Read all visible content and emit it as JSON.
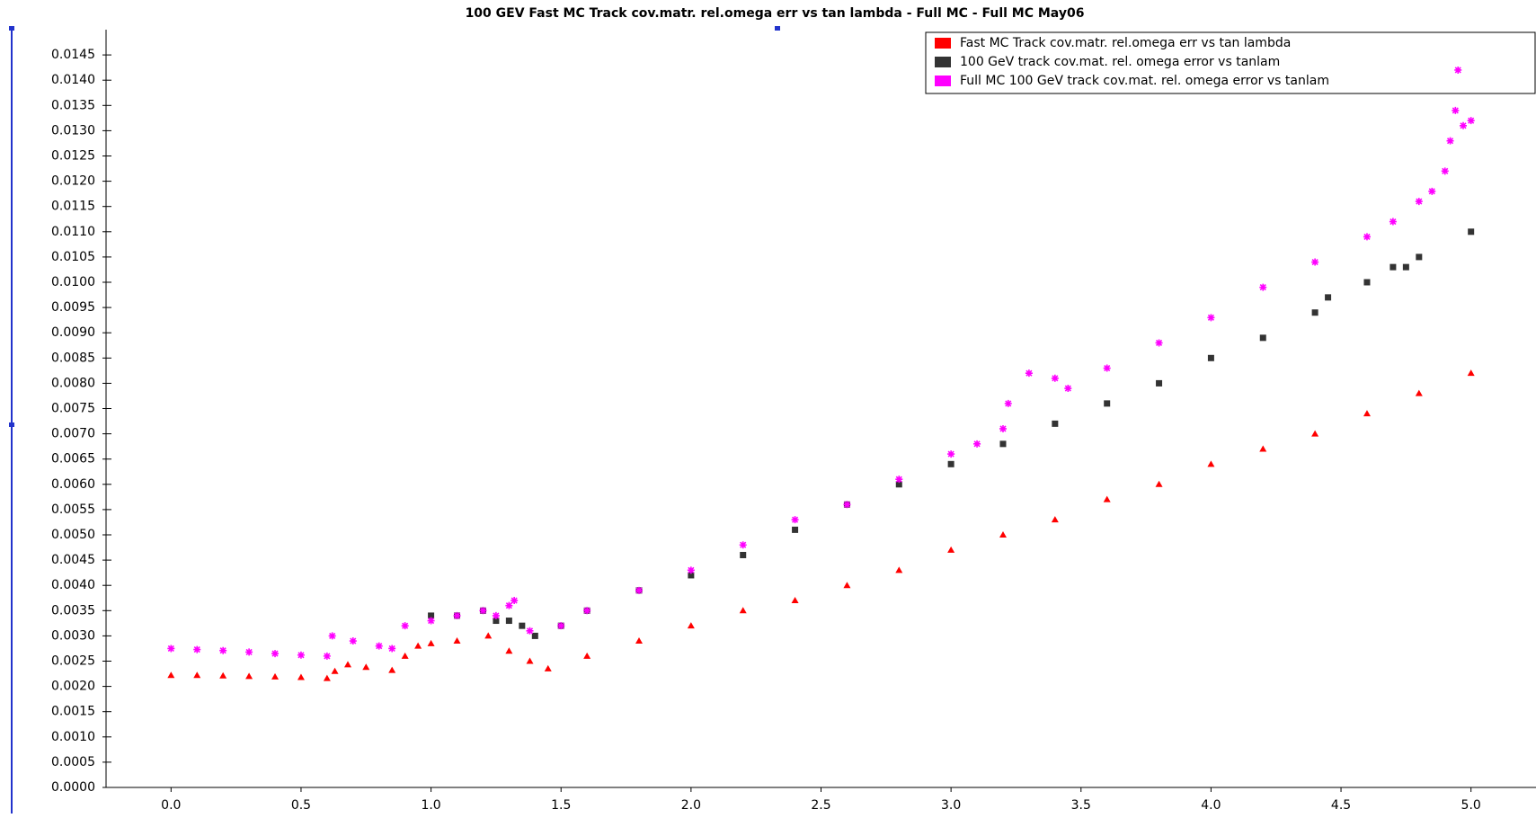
{
  "chart_data": {
    "type": "scatter",
    "title": "100 GEV Fast MC Track cov.matr. rel.omega err vs tan lambda - Full MC - Full MC May06",
    "xlim": [
      -0.25,
      5.25
    ],
    "ylim": [
      0,
      0.015
    ],
    "xticks": [
      {
        "value": 0,
        "label": "0.0"
      },
      {
        "value": 0.5,
        "label": "0.5"
      },
      {
        "value": 1,
        "label": "1.0"
      },
      {
        "value": 1.5,
        "label": "1.5"
      },
      {
        "value": 2,
        "label": "2.0"
      },
      {
        "value": 2.5,
        "label": "2.5"
      },
      {
        "value": 3,
        "label": "3.0"
      },
      {
        "value": 3.5,
        "label": "3.5"
      },
      {
        "value": 4,
        "label": "4.0"
      },
      {
        "value": 4.5,
        "label": "4.5"
      },
      {
        "value": 5,
        "label": "5.0"
      }
    ],
    "yticks": [
      {
        "value": 0,
        "label": "0.0000"
      },
      {
        "value": 0.0005,
        "label": "0.0005"
      },
      {
        "value": 0.001,
        "label": "0.0010"
      },
      {
        "value": 0.0015,
        "label": "0.0015"
      },
      {
        "value": 0.002,
        "label": "0.0020"
      },
      {
        "value": 0.0025,
        "label": "0.0025"
      },
      {
        "value": 0.003,
        "label": "0.0030"
      },
      {
        "value": 0.0035,
        "label": "0.0035"
      },
      {
        "value": 0.004,
        "label": "0.0040"
      },
      {
        "value": 0.0045,
        "label": "0.0045"
      },
      {
        "value": 0.005,
        "label": "0.0050"
      },
      {
        "value": 0.0055,
        "label": "0.0055"
      },
      {
        "value": 0.006,
        "label": "0.0060"
      },
      {
        "value": 0.0065,
        "label": "0.0065"
      },
      {
        "value": 0.007,
        "label": "0.0070"
      },
      {
        "value": 0.0075,
        "label": "0.0075"
      },
      {
        "value": 0.008,
        "label": "0.0080"
      },
      {
        "value": 0.0085,
        "label": "0.0085"
      },
      {
        "value": 0.009,
        "label": "0.0090"
      },
      {
        "value": 0.0095,
        "label": "0.0095"
      },
      {
        "value": 0.01,
        "label": "0.0100"
      },
      {
        "value": 0.0105,
        "label": "0.0105"
      },
      {
        "value": 0.011,
        "label": "0.0110"
      },
      {
        "value": 0.0115,
        "label": "0.0115"
      },
      {
        "value": 0.012,
        "label": "0.0120"
      },
      {
        "value": 0.0125,
        "label": "0.0125"
      },
      {
        "value": 0.013,
        "label": "0.0130"
      },
      {
        "value": 0.0135,
        "label": "0.0135"
      },
      {
        "value": 0.014,
        "label": "0.0140"
      },
      {
        "value": 0.0145,
        "label": "0.0145"
      }
    ],
    "grid": false,
    "legend": "top-right",
    "series": [
      {
        "name": "Fast MC Track cov.matr. rel.omega err vs tan lambda",
        "color": "#ff0000",
        "marker": "triangle",
        "x": [
          0,
          0.1,
          0.2,
          0.3,
          0.4,
          0.5,
          0.6,
          0.63,
          0.68,
          0.75,
          0.85,
          0.9,
          0.95,
          1.0,
          1.1,
          1.22,
          1.3,
          1.38,
          1.45,
          1.6,
          1.8,
          2.0,
          2.2,
          2.4,
          2.6,
          2.8,
          3.0,
          3.2,
          3.4,
          3.6,
          3.8,
          4.0,
          4.2,
          4.4,
          4.6,
          4.8,
          5.0
        ],
        "values": [
          0.00222,
          0.00222,
          0.00221,
          0.0022,
          0.00219,
          0.00218,
          0.00216,
          0.0023,
          0.00243,
          0.00238,
          0.00232,
          0.0026,
          0.0028,
          0.00285,
          0.0029,
          0.003,
          0.0027,
          0.0025,
          0.00235,
          0.0026,
          0.0029,
          0.0032,
          0.0035,
          0.0037,
          0.004,
          0.0043,
          0.0047,
          0.005,
          0.0053,
          0.0057,
          0.006,
          0.0064,
          0.0067,
          0.007,
          0.0074,
          0.0078,
          0.0082
        ]
      },
      {
        "name": "100 GeV track cov.mat. rel. omega error vs tanlam",
        "color": "#333333",
        "marker": "square",
        "x": [
          1.0,
          1.1,
          1.2,
          1.25,
          1.3,
          1.35,
          1.4,
          1.5,
          1.6,
          1.8,
          2.0,
          2.2,
          2.4,
          2.6,
          2.8,
          3.0,
          3.2,
          3.4,
          3.6,
          3.8,
          4.0,
          4.2,
          4.4,
          4.45,
          4.6,
          4.7,
          4.75,
          4.8,
          5.0
        ],
        "values": [
          0.0034,
          0.0034,
          0.0035,
          0.0033,
          0.0033,
          0.0032,
          0.003,
          0.0032,
          0.0035,
          0.0039,
          0.0042,
          0.0046,
          0.0051,
          0.0056,
          0.006,
          0.0064,
          0.0068,
          0.0072,
          0.0076,
          0.008,
          0.0085,
          0.0089,
          0.0094,
          0.0097,
          0.01,
          0.0103,
          0.0103,
          0.0105,
          0.011
        ]
      },
      {
        "name": "Full MC 100 GeV track cov.mat. rel. omega error vs tanlam",
        "color": "#ff00ff",
        "marker": "star",
        "x": [
          0,
          0.1,
          0.2,
          0.3,
          0.4,
          0.5,
          0.6,
          0.62,
          0.7,
          0.8,
          0.85,
          0.9,
          1.0,
          1.1,
          1.2,
          1.25,
          1.3,
          1.32,
          1.38,
          1.5,
          1.6,
          1.8,
          2.0,
          2.2,
          2.4,
          2.6,
          2.8,
          3.0,
          3.1,
          3.2,
          3.22,
          3.3,
          3.4,
          3.45,
          3.6,
          3.8,
          4.0,
          4.2,
          4.4,
          4.6,
          4.7,
          4.8,
          4.85,
          4.9,
          4.92,
          4.94,
          4.95,
          4.97,
          5.0
        ],
        "values": [
          0.00275,
          0.00273,
          0.00271,
          0.00268,
          0.00265,
          0.00262,
          0.0026,
          0.003,
          0.0029,
          0.0028,
          0.00275,
          0.0032,
          0.0033,
          0.0034,
          0.0035,
          0.0034,
          0.0036,
          0.0037,
          0.0031,
          0.0032,
          0.0035,
          0.0039,
          0.0043,
          0.0048,
          0.0053,
          0.0056,
          0.0061,
          0.0066,
          0.0068,
          0.0071,
          0.0076,
          0.0082,
          0.0081,
          0.0079,
          0.0083,
          0.0088,
          0.0093,
          0.0099,
          0.0104,
          0.0109,
          0.0112,
          0.0116,
          0.0118,
          0.0122,
          0.0128,
          0.0134,
          0.0142,
          0.0131,
          0.0132
        ]
      }
    ]
  }
}
